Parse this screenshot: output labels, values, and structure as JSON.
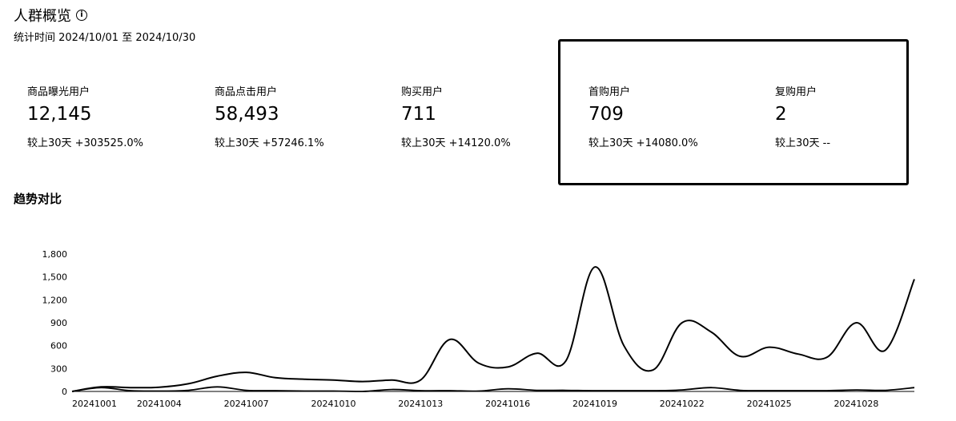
{
  "header": {
    "title": "人群概览",
    "info_icon": "info-icon",
    "period": "统计时间 2024/10/01 至 2024/10/30"
  },
  "metrics": [
    {
      "label": "商品曝光用户",
      "value": "12,145",
      "compare": "较上30天 +303525.0%"
    },
    {
      "label": "商品点击用户",
      "value": "58,493",
      "compare": "较上30天 +57246.1%"
    },
    {
      "label": "购买用户",
      "value": "711",
      "compare": "较上30天 +14120.0%"
    },
    {
      "label": "首购用户",
      "value": "709",
      "compare": "较上30天 +14080.0%"
    },
    {
      "label": "复购用户",
      "value": "2",
      "compare": "较上30天 --"
    }
  ],
  "trend": {
    "title": "趋势对比"
  },
  "chart_data": {
    "type": "line",
    "ylim": [
      0,
      1800
    ],
    "yticks": [
      "0",
      "300",
      "600",
      "900",
      "1,200",
      "1,500",
      "1,800"
    ],
    "xtick_labels": [
      "20241001",
      "20241004",
      "20241007",
      "20241010",
      "20241013",
      "20241016",
      "20241019",
      "20241022",
      "20241025",
      "20241028"
    ],
    "categories": [
      "20241001",
      "20241002",
      "20241003",
      "20241004",
      "20241005",
      "20241006",
      "20241007",
      "20241008",
      "20241009",
      "20241010",
      "20241011",
      "20241012",
      "20241013",
      "20241014",
      "20241015",
      "20241016",
      "20241017",
      "20241018",
      "20241019",
      "20241020",
      "20241021",
      "20241022",
      "20241023",
      "20241024",
      "20241025",
      "20241026",
      "20241027",
      "20241028",
      "20241029",
      "20241030"
    ],
    "series": [
      {
        "values": [
          0,
          60,
          50,
          55,
          100,
          200,
          250,
          180,
          160,
          150,
          130,
          150,
          150,
          680,
          370,
          320,
          500,
          400,
          1630,
          600,
          280,
          900,
          780,
          460,
          580,
          490,
          450,
          900,
          540,
          1470
        ]
      },
      {
        "values": [
          0,
          50,
          10,
          5,
          15,
          60,
          15,
          10,
          5,
          5,
          0,
          25,
          10,
          10,
          5,
          35,
          15,
          15,
          10,
          10,
          10,
          20,
          50,
          15,
          10,
          10,
          10,
          20,
          15,
          50
        ]
      }
    ]
  }
}
